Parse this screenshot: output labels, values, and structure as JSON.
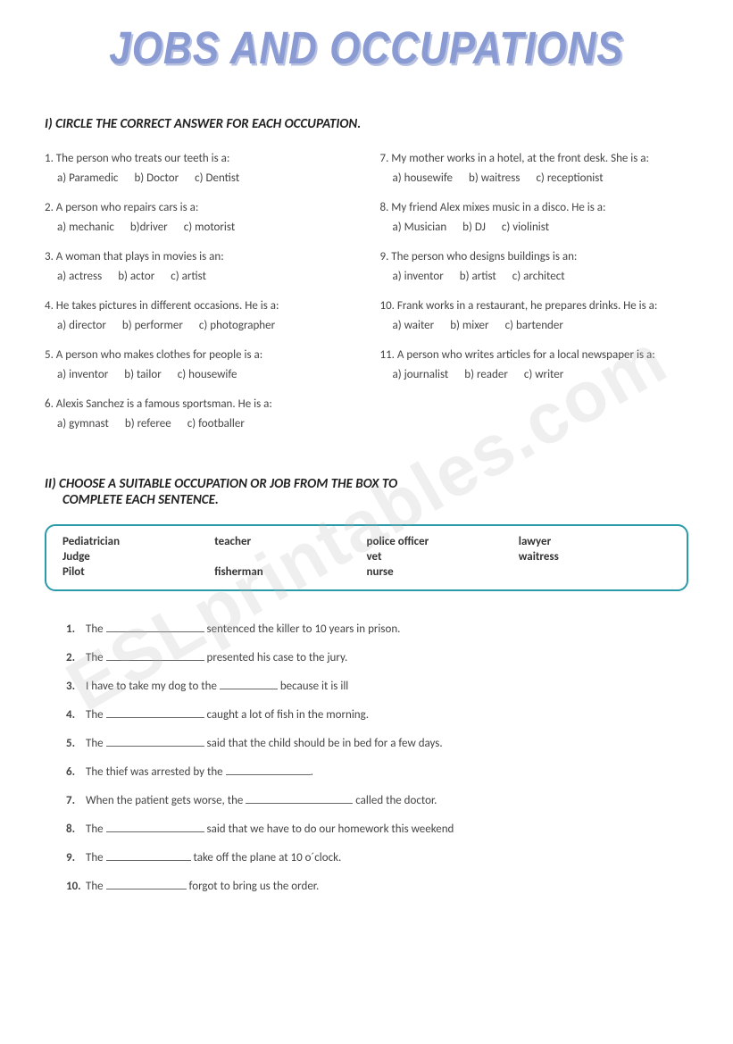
{
  "title": "JOBS AND OCCUPATIONS",
  "watermark": "ESLprintables.com",
  "section1": {
    "header": "I) CIRCLE THE CORRECT ANSWER FOR EACH OCCUPATION.",
    "left": [
      {
        "text": "1. The person who treats our teeth is a:",
        "opts": [
          "a) Paramedic",
          "b) Doctor",
          "c) Dentist"
        ]
      },
      {
        "text": "2. A person who repairs cars is a:",
        "opts": [
          "a) mechanic",
          "b)driver",
          "c) motorist"
        ]
      },
      {
        "text": "3. A woman that plays in movies is an:",
        "opts": [
          "a) actress",
          "b) actor",
          "c) artist"
        ]
      },
      {
        "text": "4. He takes pictures in different occasions. He is a:",
        "opts": [
          "a) director",
          "b) performer",
          "c) photographer"
        ]
      },
      {
        "text": "5. A person who makes clothes for people is a:",
        "opts": [
          "a) inventor",
          "b) tailor",
          "c) housewife"
        ]
      },
      {
        "text": "6. Alexis Sanchez is a famous sportsman. He is a:",
        "opts": [
          "a) gymnast",
          "b) referee",
          "c) footballer"
        ]
      }
    ],
    "right": [
      {
        "text": "7. My mother works in a hotel, at the front desk. She is a:",
        "opts": [
          "a) housewife",
          "b) waitress",
          "c) receptionist"
        ]
      },
      {
        "text": "8. My friend Alex mixes music in a disco. He is a:",
        "opts": [
          "a) Musician",
          "b) DJ",
          "c) violinist"
        ]
      },
      {
        "text": "9. The person who designs buildings is an:",
        "opts": [
          "a) inventor",
          "b) artist",
          "c) architect"
        ]
      },
      {
        "text": "10. Frank works in a restaurant, he prepares drinks. He is a:",
        "opts": [
          "a) waiter",
          "b) mixer",
          "c) bartender"
        ]
      },
      {
        "text": "11. A person who writes articles for a local newspaper is a:",
        "opts": [
          "a) journalist",
          "b) reader",
          "c) writer"
        ]
      }
    ]
  },
  "section2": {
    "header_line1": "II) CHOOSE A SUITABLE OCCUPATION OR JOB FROM THE BOX TO",
    "header_line2": "COMPLETE EACH SENTENCE.",
    "box_rows": [
      [
        "Pediatrician",
        "teacher",
        "police officer",
        "lawyer"
      ],
      [
        "Judge",
        "",
        "vet",
        "waitress"
      ],
      [
        "Pilot",
        "fisherman",
        "nurse",
        ""
      ]
    ],
    "items": [
      {
        "n": "1.",
        "pre": "The ",
        "blank": 110,
        "post": " sentenced the killer to 10 years in prison."
      },
      {
        "n": "2.",
        "pre": "The ",
        "blank": 110,
        "post": " presented his case to the jury."
      },
      {
        "n": "3.",
        "pre": "I have to take my dog to the ",
        "blank": 65,
        "post": " because it is ill"
      },
      {
        "n": "4.",
        "pre": "The ",
        "blank": 110,
        "post": " caught a lot of fish in the morning."
      },
      {
        "n": "5.",
        "pre": "The ",
        "blank": 110,
        "post": " said that the child should be in bed for a few days."
      },
      {
        "n": "6.",
        "pre": "The thief was arrested by the ",
        "blank": 95,
        "post": "."
      },
      {
        "n": "7.",
        "pre": "When the patient gets worse, the ",
        "blank": 120,
        "post": " called the doctor."
      },
      {
        "n": "8.",
        "pre": "The ",
        "blank": 110,
        "post": " said that we have to do our homework this weekend"
      },
      {
        "n": "9.",
        "pre": "The ",
        "blank": 95,
        "post": " take off the plane at 10 o´clock."
      },
      {
        "n": "10.",
        "pre": "The ",
        "blank": 90,
        "post": " forgot to bring us the order."
      }
    ]
  },
  "colors": {
    "title": "#8a9bd4",
    "title_shadow": "#b8c2e0",
    "text": "#444444",
    "box_border": "#2a9ba8",
    "bg": "#ffffff",
    "watermark": "rgba(180,180,180,0.22)"
  },
  "fonts": {
    "title_size": 44,
    "body_size": 13,
    "header_size": 15
  }
}
